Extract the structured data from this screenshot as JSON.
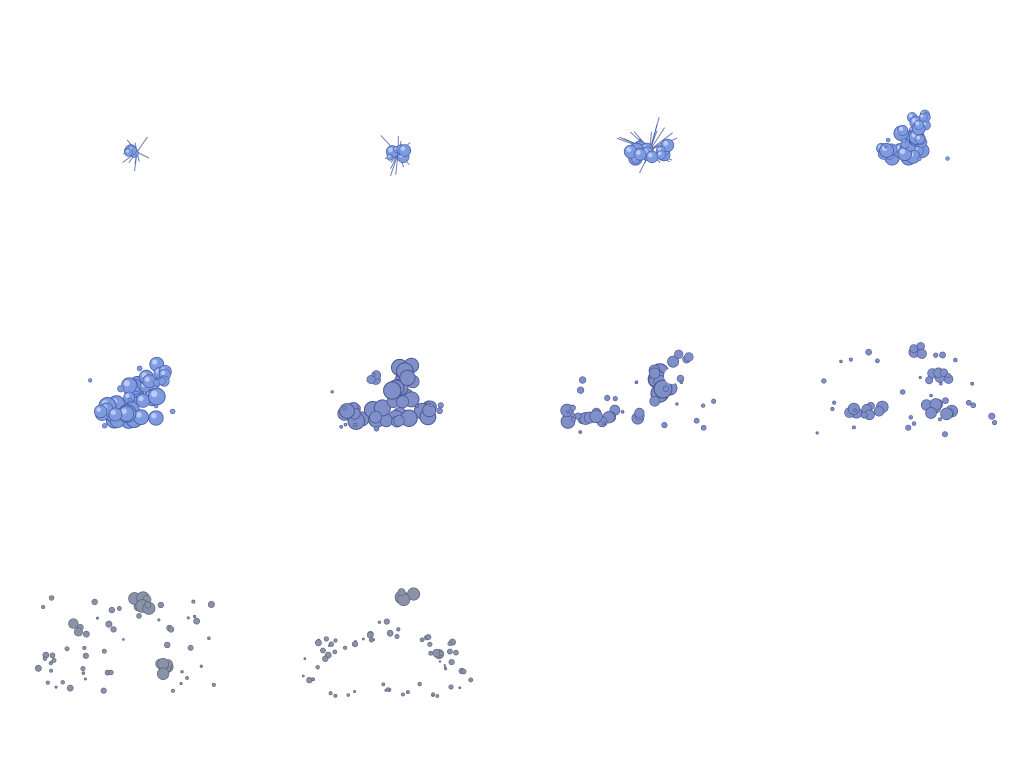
{
  "sprite_sheet": {
    "subject": "smoke-burst-animation",
    "frame_count": 10,
    "columns": 4,
    "rows": 3,
    "palette": {
      "early_fill": "#7f9be0",
      "early_highlight": "#c9dcff",
      "early_outline": "#4a5fa8",
      "mid_fill": "#7f8fc8",
      "mid_outline": "#4b5490",
      "late_fill": "#8a92a8",
      "late_outline": "#5d6478",
      "background": "#ffffff"
    }
  }
}
